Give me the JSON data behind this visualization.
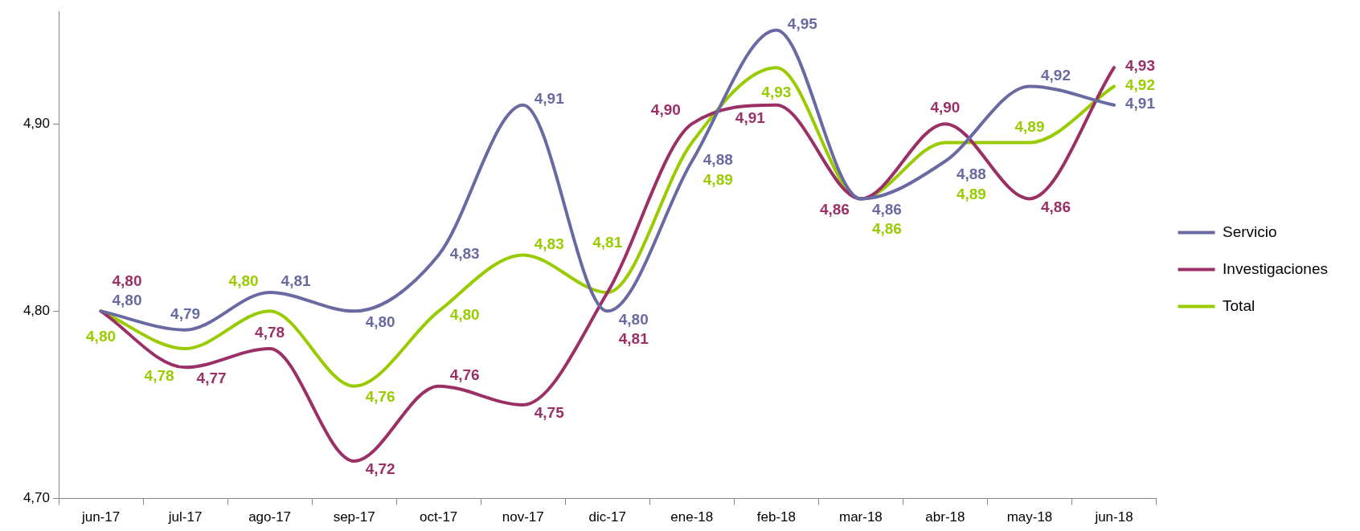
{
  "chart_data": {
    "type": "line",
    "categories": [
      "jun-17",
      "jul-17",
      "ago-17",
      "sep-17",
      "oct-17",
      "nov-17",
      "dic-17",
      "ene-18",
      "feb-18",
      "mar-18",
      "abr-18",
      "may-18",
      "jun-18"
    ],
    "series": [
      {
        "name": "Servicio",
        "color": "#6a6aa2",
        "values": [
          4.8,
          4.79,
          4.81,
          4.8,
          4.83,
          4.91,
          4.8,
          4.88,
          4.95,
          4.86,
          4.88,
          4.92,
          4.91
        ],
        "value_labels": [
          "4,80",
          "4,79",
          "4,81",
          "4,80",
          "4,83",
          "4,91",
          "4,80",
          "4,88",
          "4,95",
          "4,86",
          "4,88",
          "4,92",
          "4,91"
        ]
      },
      {
        "name": "Investigaciones",
        "color": "#9b3066",
        "values": [
          4.8,
          4.77,
          4.78,
          4.72,
          4.76,
          4.75,
          4.81,
          4.9,
          4.91,
          4.86,
          4.9,
          4.86,
          4.93
        ],
        "value_labels": [
          "4,80",
          "4,77",
          "4,78",
          "4,72",
          "4,76",
          "4,75",
          "4,81",
          "4,90",
          "4,91",
          "4,86",
          "4,90",
          "4,86",
          "4,93"
        ]
      },
      {
        "name": "Total",
        "color": "#99cc00",
        "values": [
          4.8,
          4.78,
          4.8,
          4.76,
          4.8,
          4.83,
          4.81,
          4.89,
          4.93,
          4.86,
          4.89,
          4.89,
          4.92
        ],
        "value_labels": [
          "4,80",
          "4,78",
          "4,80",
          "4,76",
          "4,80",
          "4,83",
          "4,81",
          "4,89",
          "4,93",
          "4,86",
          "4,89",
          "4,89",
          "4,92"
        ]
      }
    ],
    "ylim": [
      4.7,
      4.96
    ],
    "yticks": [
      {
        "value": 4.7,
        "label": "4,70"
      },
      {
        "value": 4.8,
        "label": "4,80"
      },
      {
        "value": 4.9,
        "label": "4,90"
      }
    ],
    "legend": "right"
  }
}
